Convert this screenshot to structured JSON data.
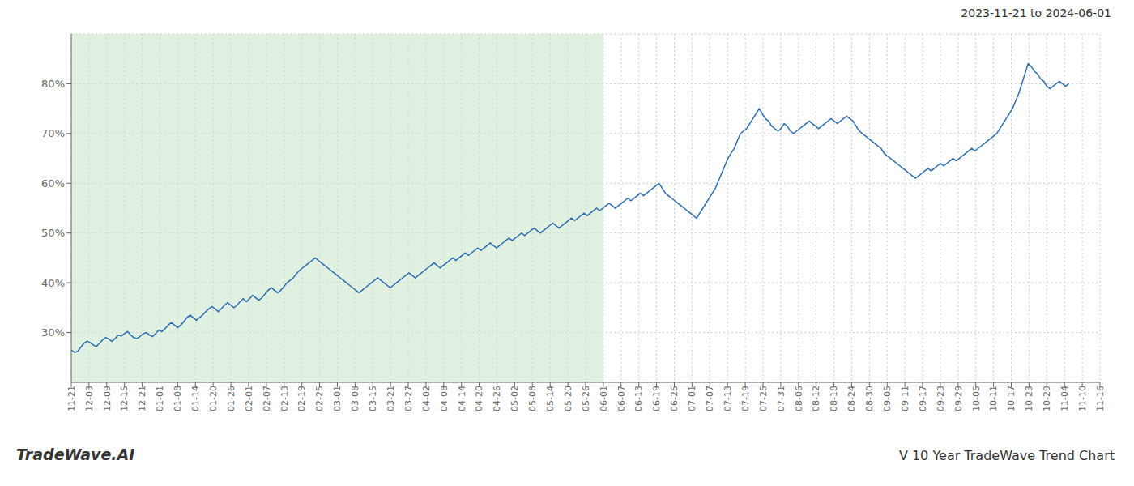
{
  "chart_data": {
    "type": "line",
    "title": "V 10 Year TradeWave Trend Chart",
    "subtitle": "2023-11-21 to 2024-06-01",
    "annotations": [
      "TradeWave.AI"
    ],
    "color": "#2b6cb0",
    "grid": true,
    "xlim": [
      0,
      329
    ],
    "ylim": [
      20,
      90
    ],
    "yticks": [
      {
        "value": 30,
        "label": "30%"
      },
      {
        "value": 40,
        "label": "40%"
      },
      {
        "value": 50,
        "label": "50%"
      },
      {
        "value": 60,
        "label": "60%"
      },
      {
        "value": 70,
        "label": "70%"
      },
      {
        "value": 80,
        "label": "80%"
      }
    ],
    "xticks": [
      {
        "value": 0,
        "label": "11-21"
      },
      {
        "value": 5.672414,
        "label": "12-03"
      },
      {
        "value": 11.344828,
        "label": "12-09"
      },
      {
        "value": 17.017241,
        "label": "12-15"
      },
      {
        "value": 22.689655,
        "label": "12-21"
      },
      {
        "value": 28.362069,
        "label": "01-01"
      },
      {
        "value": 34.034483,
        "label": "01-08"
      },
      {
        "value": 39.706897,
        "label": "01-14"
      },
      {
        "value": 45.37931,
        "label": "01-20"
      },
      {
        "value": 51.051724,
        "label": "01-26"
      },
      {
        "value": 56.724138,
        "label": "02-01"
      },
      {
        "value": 62.396552,
        "label": "02-07"
      },
      {
        "value": 68.068966,
        "label": "02-13"
      },
      {
        "value": 73.741379,
        "label": "02-19"
      },
      {
        "value": 79.413793,
        "label": "02-25"
      },
      {
        "value": 85.086207,
        "label": "03-01"
      },
      {
        "value": 90.758621,
        "label": "03-08"
      },
      {
        "value": 96.431034,
        "label": "03-15"
      },
      {
        "value": 102.103448,
        "label": "03-21"
      },
      {
        "value": 107.775862,
        "label": "03-27"
      },
      {
        "value": 113.448276,
        "label": "04-02"
      },
      {
        "value": 119.12069,
        "label": "04-08"
      },
      {
        "value": 124.793103,
        "label": "04-14"
      },
      {
        "value": 130.465517,
        "label": "04-20"
      },
      {
        "value": 136.137931,
        "label": "04-26"
      },
      {
        "value": 141.810345,
        "label": "05-02"
      },
      {
        "value": 147.482759,
        "label": "05-08"
      },
      {
        "value": 153.155172,
        "label": "05-14"
      },
      {
        "value": 158.827586,
        "label": "05-20"
      },
      {
        "value": 164.5,
        "label": "05-26"
      },
      {
        "value": 170.172414,
        "label": "06-01"
      },
      {
        "value": 175.844828,
        "label": "06-07"
      },
      {
        "value": 181.517241,
        "label": "06-13"
      },
      {
        "value": 187.189655,
        "label": "06-19"
      },
      {
        "value": 192.862069,
        "label": "06-25"
      },
      {
        "value": 198.534483,
        "label": "07-01"
      },
      {
        "value": 204.206897,
        "label": "07-07"
      },
      {
        "value": 209.87931,
        "label": "07-13"
      },
      {
        "value": 215.551724,
        "label": "07-19"
      },
      {
        "value": 221.224138,
        "label": "07-25"
      },
      {
        "value": 226.896552,
        "label": "07-31"
      },
      {
        "value": 232.568966,
        "label": "08-06"
      },
      {
        "value": 238.241379,
        "label": "08-12"
      },
      {
        "value": 243.913793,
        "label": "08-18"
      },
      {
        "value": 249.586207,
        "label": "08-24"
      },
      {
        "value": 255.258621,
        "label": "08-30"
      },
      {
        "value": 260.931034,
        "label": "09-05"
      },
      {
        "value": 266.603448,
        "label": "09-11"
      },
      {
        "value": 272.275862,
        "label": "09-17"
      },
      {
        "value": 277.948276,
        "label": "09-23"
      },
      {
        "value": 283.62069,
        "label": "09-29"
      },
      {
        "value": 289.293103,
        "label": "10-05"
      },
      {
        "value": 294.965517,
        "label": "10-11"
      },
      {
        "value": 300.637931,
        "label": "10-17"
      },
      {
        "value": 306.310345,
        "label": "10-23"
      },
      {
        "value": 311.982759,
        "label": "10-29"
      },
      {
        "value": 317.655172,
        "label": "11-04"
      },
      {
        "value": 323.327586,
        "label": "11-10"
      },
      {
        "value": 329,
        "label": "11-16"
      }
    ],
    "shaded": {
      "x": [
        0,
        170.172414
      ],
      "color": "#c8e6c8"
    },
    "values": [
      26.5,
      26.0,
      26.2,
      27.0,
      27.8,
      28.3,
      28.0,
      27.5,
      27.2,
      27.8,
      28.5,
      29.0,
      28.7,
      28.2,
      28.8,
      29.5,
      29.3,
      29.8,
      30.2,
      29.5,
      29.0,
      28.8,
      29.2,
      29.8,
      30.0,
      29.5,
      29.2,
      29.8,
      30.5,
      30.2,
      30.8,
      31.5,
      32.0,
      31.5,
      31.0,
      31.5,
      32.2,
      33.0,
      33.5,
      33.0,
      32.5,
      33.0,
      33.5,
      34.2,
      34.8,
      35.2,
      34.8,
      34.2,
      34.8,
      35.5,
      36.0,
      35.5,
      35.0,
      35.5,
      36.2,
      36.8,
      36.2,
      36.8,
      37.5,
      37.0,
      36.5,
      37.0,
      37.8,
      38.5,
      39.0,
      38.5,
      38.0,
      38.5,
      39.2,
      40.0,
      40.5,
      41.0,
      41.8,
      42.5,
      43.0,
      43.5,
      44.0,
      44.5,
      45.0,
      44.5,
      44.0,
      43.5,
      43.0,
      42.5,
      42.0,
      41.5,
      41.0,
      40.5,
      40.0,
      39.5,
      39.0,
      38.5,
      38.0,
      38.5,
      39.0,
      39.5,
      40.0,
      40.5,
      41.0,
      40.5,
      40.0,
      39.5,
      39.0,
      39.5,
      40.0,
      40.5,
      41.0,
      41.5,
      42.0,
      41.5,
      41.0,
      41.5,
      42.0,
      42.5,
      43.0,
      43.5,
      44.0,
      43.5,
      43.0,
      43.5,
      44.0,
      44.5,
      45.0,
      44.5,
      45.0,
      45.5,
      46.0,
      45.5,
      46.0,
      46.5,
      47.0,
      46.5,
      47.0,
      47.5,
      48.0,
      47.5,
      47.0,
      47.5,
      48.0,
      48.5,
      49.0,
      48.5,
      49.0,
      49.5,
      50.0,
      49.5,
      50.0,
      50.5,
      51.0,
      50.5,
      50.0,
      50.5,
      51.0,
      51.5,
      52.0,
      51.5,
      51.0,
      51.5,
      52.0,
      52.5,
      53.0,
      52.5,
      53.0,
      53.5,
      54.0,
      53.5,
      54.0,
      54.5,
      55.0,
      54.5,
      55.0,
      55.5,
      56.0,
      55.5,
      55.0,
      55.5,
      56.0,
      56.5,
      57.0,
      56.5,
      57.0,
      57.5,
      58.0,
      57.5,
      58.0,
      58.5,
      59.0,
      59.5,
      60.0,
      59.0,
      58.0,
      57.5,
      57.0,
      56.5,
      56.0,
      55.5,
      55.0,
      54.5,
      54.0,
      53.5,
      53.0,
      54.0,
      55.0,
      56.0,
      57.0,
      58.0,
      59.0,
      60.5,
      62.0,
      63.5,
      65.0,
      66.0,
      67.0,
      68.5,
      70.0,
      70.5,
      71.0,
      72.0,
      73.0,
      74.0,
      75.0,
      74.0,
      73.0,
      72.5,
      71.5,
      71.0,
      70.5,
      71.0,
      72.0,
      71.5,
      70.5,
      70.0,
      70.5,
      71.0,
      71.5,
      72.0,
      72.5,
      72.0,
      71.5,
      71.0,
      71.5,
      72.0,
      72.5,
      73.0,
      72.5,
      72.0,
      72.5,
      73.0,
      73.5,
      73.0,
      72.5,
      71.5,
      70.5,
      70.0,
      69.5,
      69.0,
      68.5,
      68.0,
      67.5,
      67.0,
      66.0,
      65.5,
      65.0,
      64.5,
      64.0,
      63.5,
      63.0,
      62.5,
      62.0,
      61.5,
      61.0,
      61.5,
      62.0,
      62.5,
      63.0,
      62.5,
      63.0,
      63.5,
      64.0,
      63.5,
      64.0,
      64.5,
      65.0,
      64.5,
      65.0,
      65.5,
      66.0,
      66.5,
      67.0,
      66.5,
      67.0,
      67.5,
      68.0,
      68.5,
      69.0,
      69.5,
      70.0,
      71.0,
      72.0,
      73.0,
      74.0,
      75.0,
      76.5,
      78.0,
      80.0,
      82.0,
      84.0,
      83.5,
      82.5,
      82.0,
      81.0,
      80.5,
      79.5,
      79.0,
      79.5,
      80.0,
      80.5,
      80.0,
      79.5,
      80.0
    ]
  }
}
